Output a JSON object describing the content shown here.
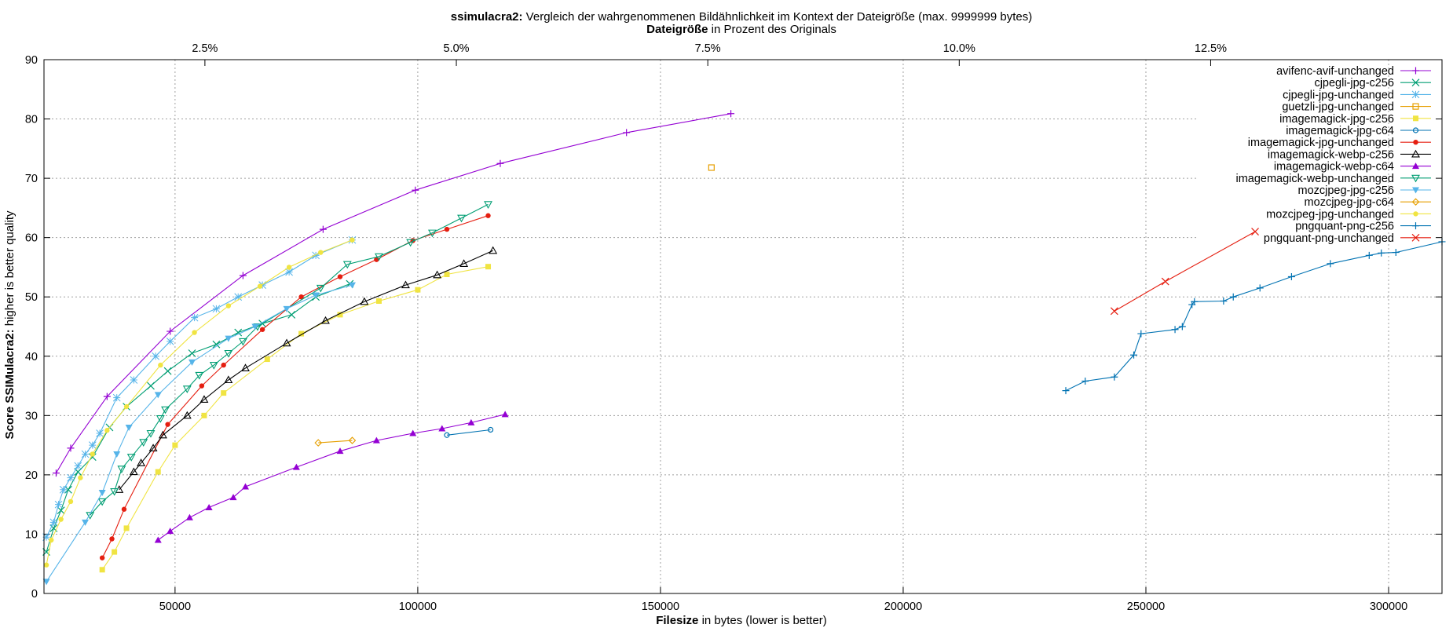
{
  "chart_data": {
    "type": "line",
    "title_bold": "ssimulacra2:",
    "title_rest": " Vergleich der wahrgenommenen Bildähnlichkeit im Kontext der Dateigröße (max. 9999999 bytes)",
    "x2label_bold": "Dateigröße",
    "x2label_rest": " in Prozent des Originals",
    "xlabel_bold": "Filesize",
    "xlabel_rest": " in bytes (lower is better)",
    "ylabel_bold": "Score SSIMulacra2:",
    "ylabel_rest": " higher is better quality",
    "xlim": [
      23000,
      311000
    ],
    "ylim": [
      0,
      90
    ],
    "x2lim": [
      0.9,
      14.8
    ],
    "grid": true,
    "legend_position": "top-right",
    "x_ticks": [
      {
        "value": 50000,
        "label": "50000"
      },
      {
        "value": 100000,
        "label": "100000"
      },
      {
        "value": 150000,
        "label": "150000"
      },
      {
        "value": 200000,
        "label": "200000"
      },
      {
        "value": 250000,
        "label": "250000"
      },
      {
        "value": 300000,
        "label": "300000"
      }
    ],
    "x2_ticks": [
      {
        "value": 2.5,
        "label": "2.5%"
      },
      {
        "value": 5.0,
        "label": "5.0%"
      },
      {
        "value": 7.5,
        "label": "7.5%"
      },
      {
        "value": 10.0,
        "label": "10.0%"
      },
      {
        "value": 12.5,
        "label": "12.5%"
      }
    ],
    "y_ticks": [
      {
        "value": 0,
        "label": "0"
      },
      {
        "value": 10,
        "label": "10"
      },
      {
        "value": 20,
        "label": "20"
      },
      {
        "value": 30,
        "label": "30"
      },
      {
        "value": 40,
        "label": "40"
      },
      {
        "value": 50,
        "label": "50"
      },
      {
        "value": 60,
        "label": "60"
      },
      {
        "value": 70,
        "label": "70"
      },
      {
        "value": 80,
        "label": "80"
      },
      {
        "value": 90,
        "label": "90"
      }
    ],
    "series": [
      {
        "name": "avifenc-avif-unchanged",
        "color": "#9400d3",
        "marker": "plus",
        "points": [
          [
            25500,
            20.3
          ],
          [
            28500,
            24.5
          ],
          [
            36000,
            33.2
          ],
          [
            49000,
            44.2
          ],
          [
            64000,
            53.6
          ],
          [
            80500,
            61.4
          ],
          [
            99500,
            68.0
          ],
          [
            117000,
            72.5
          ],
          [
            143000,
            77.7
          ],
          [
            164500,
            80.9
          ]
        ]
      },
      {
        "name": "cjpegli-jpg-c256",
        "color": "#009e73",
        "marker": "x",
        "points": [
          [
            23500,
            7.0
          ],
          [
            25000,
            11.0
          ],
          [
            26500,
            14.0
          ],
          [
            28000,
            17.5
          ],
          [
            30000,
            20.5
          ],
          [
            33000,
            23.0
          ],
          [
            36500,
            28.0
          ],
          [
            40000,
            31.5
          ],
          [
            45000,
            35.0
          ],
          [
            48500,
            37.5
          ],
          [
            53500,
            40.5
          ],
          [
            58500,
            42.0
          ],
          [
            63000,
            44.0
          ],
          [
            68000,
            45.5
          ],
          [
            74000,
            47.0
          ],
          [
            79000,
            50.0
          ],
          [
            86000,
            52.2
          ]
        ]
      },
      {
        "name": "cjpegli-jpg-unchanged",
        "color": "#56b4e9",
        "marker": "star",
        "points": [
          [
            23500,
            9.5
          ],
          [
            25000,
            12.0
          ],
          [
            26000,
            15.0
          ],
          [
            27000,
            17.5
          ],
          [
            28500,
            19.5
          ],
          [
            30000,
            21.5
          ],
          [
            31500,
            23.5
          ],
          [
            33000,
            25.0
          ],
          [
            34500,
            27.0
          ],
          [
            38000,
            33.0
          ],
          [
            41500,
            36.0
          ],
          [
            46000,
            40.0
          ],
          [
            49000,
            42.5
          ],
          [
            54000,
            46.5
          ],
          [
            58500,
            48.0
          ],
          [
            63000,
            50.0
          ],
          [
            68000,
            52.0
          ],
          [
            73500,
            54.2
          ],
          [
            79000,
            57.0
          ],
          [
            86500,
            59.6
          ]
        ]
      },
      {
        "name": "guetzli-jpg-unchanged",
        "color": "#e69f00",
        "marker": "square-open",
        "points": [
          [
            160500,
            71.8
          ]
        ]
      },
      {
        "name": "imagemagick-jpg-c256",
        "color": "#f0e442",
        "marker": "square-filled",
        "points": [
          [
            35000,
            4.0
          ],
          [
            37500,
            7.0
          ],
          [
            40000,
            11.0
          ],
          [
            46500,
            20.5
          ],
          [
            50000,
            25.0
          ],
          [
            56000,
            30.0
          ],
          [
            60000,
            33.8
          ],
          [
            69000,
            39.5
          ],
          [
            76000,
            43.8
          ],
          [
            84000,
            47.0
          ],
          [
            92000,
            49.3
          ],
          [
            100000,
            51.2
          ],
          [
            106000,
            53.8
          ],
          [
            114500,
            55.1
          ]
        ]
      },
      {
        "name": "imagemagick-jpg-c64",
        "color": "#0072b2",
        "marker": "circle-open",
        "points": [
          [
            106000,
            26.7
          ],
          [
            115000,
            27.6
          ]
        ]
      },
      {
        "name": "imagemagick-jpg-unchanged",
        "color": "#e51e10",
        "marker": "circle-filled",
        "points": [
          [
            35000,
            6.0
          ],
          [
            37000,
            9.2
          ],
          [
            39500,
            14.2
          ],
          [
            48500,
            28.5
          ],
          [
            55500,
            35.0
          ],
          [
            60000,
            38.5
          ],
          [
            68000,
            44.5
          ],
          [
            76000,
            50.0
          ],
          [
            84000,
            53.4
          ],
          [
            91500,
            56.3
          ],
          [
            99000,
            59.5
          ],
          [
            106000,
            61.4
          ],
          [
            114500,
            63.7
          ]
        ]
      },
      {
        "name": "imagemagick-webp-c256",
        "color": "#000000",
        "marker": "triangle-open",
        "points": [
          [
            38500,
            17.5
          ],
          [
            41500,
            20.5
          ],
          [
            43000,
            22.0
          ],
          [
            45500,
            24.5
          ],
          [
            47500,
            26.7
          ],
          [
            52500,
            30.0
          ],
          [
            56000,
            32.7
          ],
          [
            61000,
            36.0
          ],
          [
            64500,
            38.0
          ],
          [
            73000,
            42.2
          ],
          [
            81000,
            46.0
          ],
          [
            89000,
            49.2
          ],
          [
            97500,
            52.0
          ],
          [
            104000,
            53.7
          ],
          [
            109500,
            55.6
          ],
          [
            115500,
            57.8
          ]
        ]
      },
      {
        "name": "imagemagick-webp-c64",
        "color": "#9400d3",
        "marker": "triangle-filled",
        "points": [
          [
            46500,
            9.0
          ],
          [
            49000,
            10.5
          ],
          [
            53000,
            12.8
          ],
          [
            57000,
            14.5
          ],
          [
            62000,
            16.2
          ],
          [
            64500,
            18.0
          ],
          [
            75000,
            21.3
          ],
          [
            84000,
            24.0
          ],
          [
            91500,
            25.8
          ],
          [
            99000,
            27.0
          ],
          [
            105000,
            27.8
          ],
          [
            111000,
            28.8
          ],
          [
            118000,
            30.2
          ]
        ]
      },
      {
        "name": "imagemagick-webp-unchanged",
        "color": "#009e73",
        "marker": "triangle-down-open",
        "points": [
          [
            32500,
            13.2
          ],
          [
            35000,
            15.5
          ],
          [
            37500,
            17.2
          ],
          [
            39000,
            21.0
          ],
          [
            41000,
            23.0
          ],
          [
            43500,
            25.5
          ],
          [
            45000,
            27.0
          ],
          [
            47000,
            29.5
          ],
          [
            48000,
            31.0
          ],
          [
            52500,
            34.5
          ],
          [
            55000,
            36.8
          ],
          [
            58000,
            38.5
          ],
          [
            61000,
            40.5
          ],
          [
            64000,
            42.5
          ],
          [
            67000,
            45.0
          ],
          [
            80000,
            51.5
          ],
          [
            85500,
            55.5
          ],
          [
            92000,
            56.8
          ],
          [
            98500,
            59.2
          ],
          [
            103000,
            60.8
          ],
          [
            109000,
            63.3
          ],
          [
            114500,
            65.6
          ]
        ]
      },
      {
        "name": "mozcjpeg-jpg-c256",
        "color": "#56b4e9",
        "marker": "triangle-down-filled",
        "points": [
          [
            23500,
            2.0
          ],
          [
            31500,
            12.0
          ],
          [
            35000,
            17.0
          ],
          [
            38000,
            23.5
          ],
          [
            40500,
            28.0
          ],
          [
            46500,
            33.5
          ],
          [
            53500,
            39.0
          ],
          [
            61000,
            43.0
          ],
          [
            66500,
            45.0
          ],
          [
            73000,
            48.0
          ],
          [
            79000,
            50.3
          ],
          [
            86500,
            52.0
          ]
        ]
      },
      {
        "name": "mozcjpeg-jpg-c64",
        "color": "#e69f00",
        "marker": "diamond-open",
        "points": [
          [
            79500,
            25.4
          ],
          [
            86500,
            25.8
          ]
        ]
      },
      {
        "name": "mozcjpeg-jpg-unchanged",
        "color": "#f0e442",
        "marker": "circle-filled",
        "points": [
          [
            23500,
            4.8
          ],
          [
            24500,
            9.0
          ],
          [
            26500,
            12.5
          ],
          [
            28500,
            15.5
          ],
          [
            30500,
            19.5
          ],
          [
            33000,
            23.5
          ],
          [
            36000,
            27.5
          ],
          [
            40000,
            31.5
          ],
          [
            47000,
            38.5
          ],
          [
            54000,
            44.0
          ],
          [
            61000,
            48.5
          ],
          [
            67500,
            51.8
          ],
          [
            73500,
            55.0
          ],
          [
            80000,
            57.5
          ],
          [
            86500,
            59.6
          ]
        ]
      },
      {
        "name": "pngquant-png-c256",
        "color": "#0072b2",
        "marker": "plus",
        "points": [
          [
            233500,
            34.2
          ],
          [
            237500,
            35.8
          ],
          [
            243500,
            36.5
          ],
          [
            247500,
            40.2
          ],
          [
            249000,
            43.8
          ],
          [
            256000,
            44.5
          ],
          [
            257500,
            45.0
          ],
          [
            259500,
            48.7
          ],
          [
            260000,
            49.2
          ],
          [
            266000,
            49.3
          ],
          [
            268000,
            50.0
          ],
          [
            273500,
            51.5
          ],
          [
            280000,
            53.4
          ],
          [
            288000,
            55.6
          ],
          [
            296000,
            57.0
          ],
          [
            298500,
            57.4
          ],
          [
            301500,
            57.5
          ],
          [
            311000,
            59.3
          ]
        ]
      },
      {
        "name": "pngquant-png-unchanged",
        "color": "#e51e10",
        "marker": "x",
        "points": [
          [
            243500,
            47.6
          ],
          [
            254000,
            52.6
          ],
          [
            272500,
            61.0
          ]
        ]
      }
    ]
  }
}
